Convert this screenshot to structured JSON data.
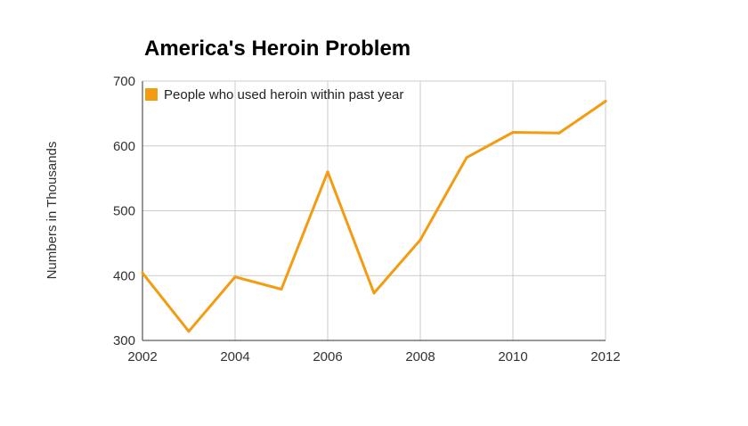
{
  "chart_data": {
    "type": "line",
    "title": "America's Heroin Problem",
    "xlabel": "",
    "ylabel": "Numbers in Thousands",
    "x": [
      2002,
      2003,
      2004,
      2005,
      2006,
      2007,
      2008,
      2009,
      2010,
      2011,
      2012
    ],
    "x_tick_labels": [
      "2002",
      "2004",
      "2006",
      "2008",
      "2010",
      "2012"
    ],
    "y_tick_labels": [
      "300",
      "400",
      "500",
      "600",
      "700"
    ],
    "xlim": [
      2002,
      2012
    ],
    "ylim": [
      300,
      700
    ],
    "grid": true,
    "legend_position": "top-left",
    "series": [
      {
        "name": "People who used heroin within past year",
        "color": "#f39c12",
        "values": [
          404,
          314,
          398,
          379,
          560,
          373,
          455,
          582,
          621,
          620,
          669
        ]
      }
    ]
  }
}
